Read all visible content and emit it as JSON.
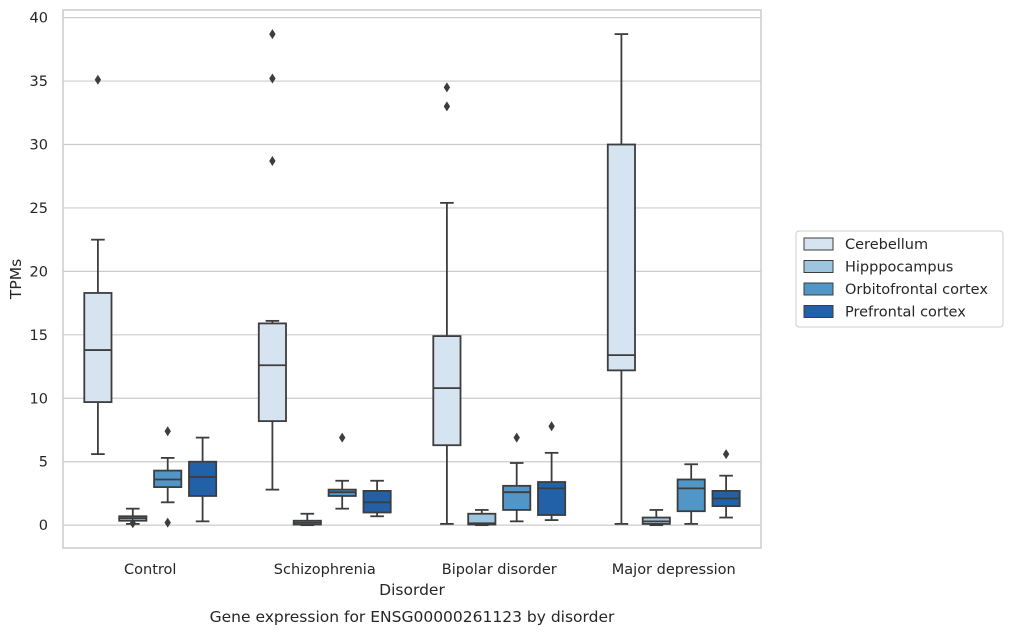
{
  "chart_data": {
    "type": "box",
    "caption": "Gene expression for ENSG00000261123 by disorder",
    "xlabel": "Disorder",
    "ylabel": "TPMs",
    "ylim": [
      -1.8,
      40.6
    ],
    "yticks": [
      0,
      5,
      10,
      15,
      20,
      25,
      30,
      35,
      40
    ],
    "grid": "horizontal",
    "legend_position": "right",
    "categories": [
      "Control",
      "Schizophrenia",
      "Bipolar disorder",
      "Major depression"
    ],
    "series": [
      {
        "name": "Cerebellum",
        "color": "#d6e3f1",
        "boxes": [
          {
            "whisker_low": 5.6,
            "q1": 9.7,
            "median": 13.8,
            "q3": 18.3,
            "whisker_high": 22.5,
            "outliers": [
              35.1
            ]
          },
          {
            "whisker_low": 2.8,
            "q1": 8.2,
            "median": 12.6,
            "q3": 15.9,
            "whisker_high": 16.1,
            "outliers": [
              28.7,
              35.2,
              38.7
            ]
          },
          {
            "whisker_low": 0.1,
            "q1": 6.3,
            "median": 10.8,
            "q3": 14.9,
            "whisker_high": 25.4,
            "outliers": [
              33.0,
              34.5
            ]
          },
          {
            "whisker_low": 0.1,
            "q1": 12.2,
            "median": 13.4,
            "q3": 30.0,
            "whisker_high": 38.7,
            "outliers": []
          }
        ]
      },
      {
        "name": "Hipppocampus",
        "color": "#9ec5df",
        "boxes": [
          {
            "whisker_low": 0.1,
            "q1": 0.35,
            "median": 0.55,
            "q3": 0.7,
            "whisker_high": 1.3,
            "outliers": [
              0.15
            ]
          },
          {
            "whisker_low": 0.0,
            "q1": 0.05,
            "median": 0.2,
            "q3": 0.35,
            "whisker_high": 0.9,
            "outliers": []
          },
          {
            "whisker_low": 0.0,
            "q1": 0.05,
            "median": 0.15,
            "q3": 0.9,
            "whisker_high": 1.2,
            "outliers": []
          },
          {
            "whisker_low": 0.0,
            "q1": 0.1,
            "median": 0.3,
            "q3": 0.6,
            "whisker_high": 1.2,
            "outliers": []
          }
        ]
      },
      {
        "name": "Orbitofrontal cortex",
        "color": "#5196c7",
        "boxes": [
          {
            "whisker_low": 1.8,
            "q1": 3.0,
            "median": 3.6,
            "q3": 4.3,
            "whisker_high": 5.3,
            "outliers": [
              7.4,
              0.2
            ]
          },
          {
            "whisker_low": 1.3,
            "q1": 2.3,
            "median": 2.6,
            "q3": 2.8,
            "whisker_high": 3.5,
            "outliers": [
              6.9
            ]
          },
          {
            "whisker_low": 0.3,
            "q1": 1.2,
            "median": 2.6,
            "q3": 3.1,
            "whisker_high": 4.9,
            "outliers": [
              6.9
            ]
          },
          {
            "whisker_low": 0.1,
            "q1": 1.1,
            "median": 2.9,
            "q3": 3.6,
            "whisker_high": 4.8,
            "outliers": []
          }
        ]
      },
      {
        "name": "Prefrontal cortex",
        "color": "#2261a7",
        "boxes": [
          {
            "whisker_low": 0.3,
            "q1": 2.3,
            "median": 3.8,
            "q3": 5.0,
            "whisker_high": 6.9,
            "outliers": []
          },
          {
            "whisker_low": 0.7,
            "q1": 1.0,
            "median": 1.8,
            "q3": 2.7,
            "whisker_high": 3.5,
            "outliers": []
          },
          {
            "whisker_low": 0.4,
            "q1": 0.8,
            "median": 2.9,
            "q3": 3.4,
            "whisker_high": 5.7,
            "outliers": [
              7.8
            ]
          },
          {
            "whisker_low": 0.6,
            "q1": 1.5,
            "median": 2.1,
            "q3": 2.7,
            "whisker_high": 3.9,
            "outliers": [
              5.6
            ]
          }
        ]
      }
    ]
  }
}
